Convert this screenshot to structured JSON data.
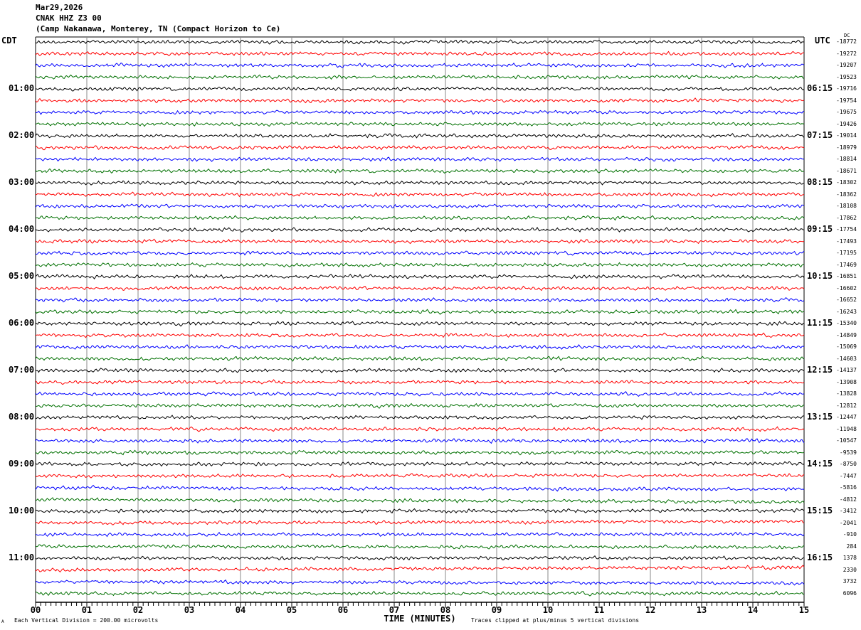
{
  "header": {
    "date": "Mar29,2026",
    "station": "CNAK HHZ Z3 00",
    "location": "(Camp Nakanawa, Monterey, TN (Compact Horizon to Ce)"
  },
  "left_tz": "CDT",
  "right_tz": "UTC",
  "dc_label": "DC",
  "footer": {
    "scale": "Each Vertical Division =  200.00 microvolts",
    "xlabel": "TIME (MINUTES)",
    "clip_note": "Traces clipped at plus/minus 5 vertical divisions",
    "corner_mark": "A"
  },
  "chart_data": {
    "type": "line",
    "xlabel": "TIME (MINUTES)",
    "x_ticks": [
      "00",
      "01",
      "02",
      "03",
      "04",
      "05",
      "06",
      "07",
      "08",
      "09",
      "10",
      "11",
      "12",
      "13",
      "14",
      "15"
    ],
    "xlim": [
      0,
      15
    ],
    "trace_colors": [
      "#000000",
      "#ff0000",
      "#0000ff",
      "#007000"
    ],
    "left_hour_labels": [
      "01:00",
      "02:00",
      "03:00",
      "04:00",
      "05:00",
      "06:00",
      "07:00",
      "08:00",
      "09:00",
      "10:00",
      "11:00"
    ],
    "right_hour_labels": [
      "06:15",
      "07:15",
      "08:15",
      "09:15",
      "10:15",
      "11:15",
      "12:15",
      "13:15",
      "14:15",
      "15:15",
      "16:15"
    ],
    "trace_dc_offsets": [
      "-18772",
      "-19272",
      "-19207",
      "-19523",
      "-19716",
      "-19754",
      "-19675",
      "-19426",
      "-19014",
      "-18979",
      "-18814",
      "-18671",
      "-18302",
      "-18362",
      "-18108",
      "-17862",
      "-17754",
      "-17493",
      "-17195",
      "-17469",
      "-16851",
      "-16602",
      "-16652",
      "-16243",
      "-15340",
      "-14849",
      "-15069",
      "-14603",
      "-14137",
      "-13908",
      "-13828",
      "-12812",
      "-12447",
      "-11948",
      "-10547",
      "-9539",
      "-8750",
      "-7447",
      "-5816",
      "-4812",
      "-3412",
      "-2041",
      "-910",
      "284",
      "1378",
      "2330",
      "3732",
      "6096"
    ]
  }
}
